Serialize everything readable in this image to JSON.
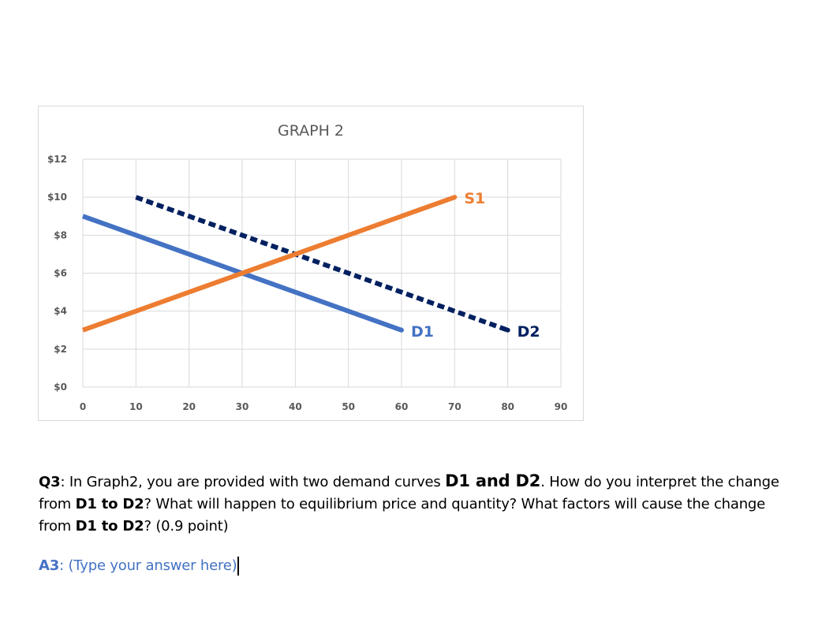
{
  "chart_data": {
    "type": "line",
    "title": "GRAPH 2",
    "x_ticks": [
      "0",
      "10",
      "20",
      "30",
      "40",
      "50",
      "60",
      "70",
      "80",
      "90"
    ],
    "y_ticks": [
      "$0",
      "$2",
      "$4",
      "$6",
      "$8",
      "$10",
      "$12"
    ],
    "xlim": [
      0,
      90
    ],
    "ylim": [
      0,
      12
    ],
    "grid": true,
    "series": [
      {
        "name": "D1",
        "style": "solid",
        "color": "#4472c4",
        "points": [
          [
            0,
            9
          ],
          [
            60,
            3
          ]
        ]
      },
      {
        "name": "D2",
        "style": "dashed",
        "color": "#002060",
        "points": [
          [
            10,
            10
          ],
          [
            80,
            3
          ]
        ]
      },
      {
        "name": "S1",
        "style": "solid",
        "color": "#ed7d31",
        "points": [
          [
            0,
            3
          ],
          [
            70,
            10
          ]
        ]
      }
    ]
  },
  "question": {
    "label": "Q3",
    "part1": ": In Graph2, you are provided with two demand curves ",
    "curves": "D1 and D2",
    "part2": ". How do you interpret the change from ",
    "change1": "D1 to D2",
    "part3": "? What will happen to equilibrium price and quantity? What factors will cause the change from ",
    "change2": "D1 to D2",
    "part4": "? (0.9 point)"
  },
  "answer": {
    "label": "A3",
    "placeholder": ": (Type your answer here)"
  }
}
